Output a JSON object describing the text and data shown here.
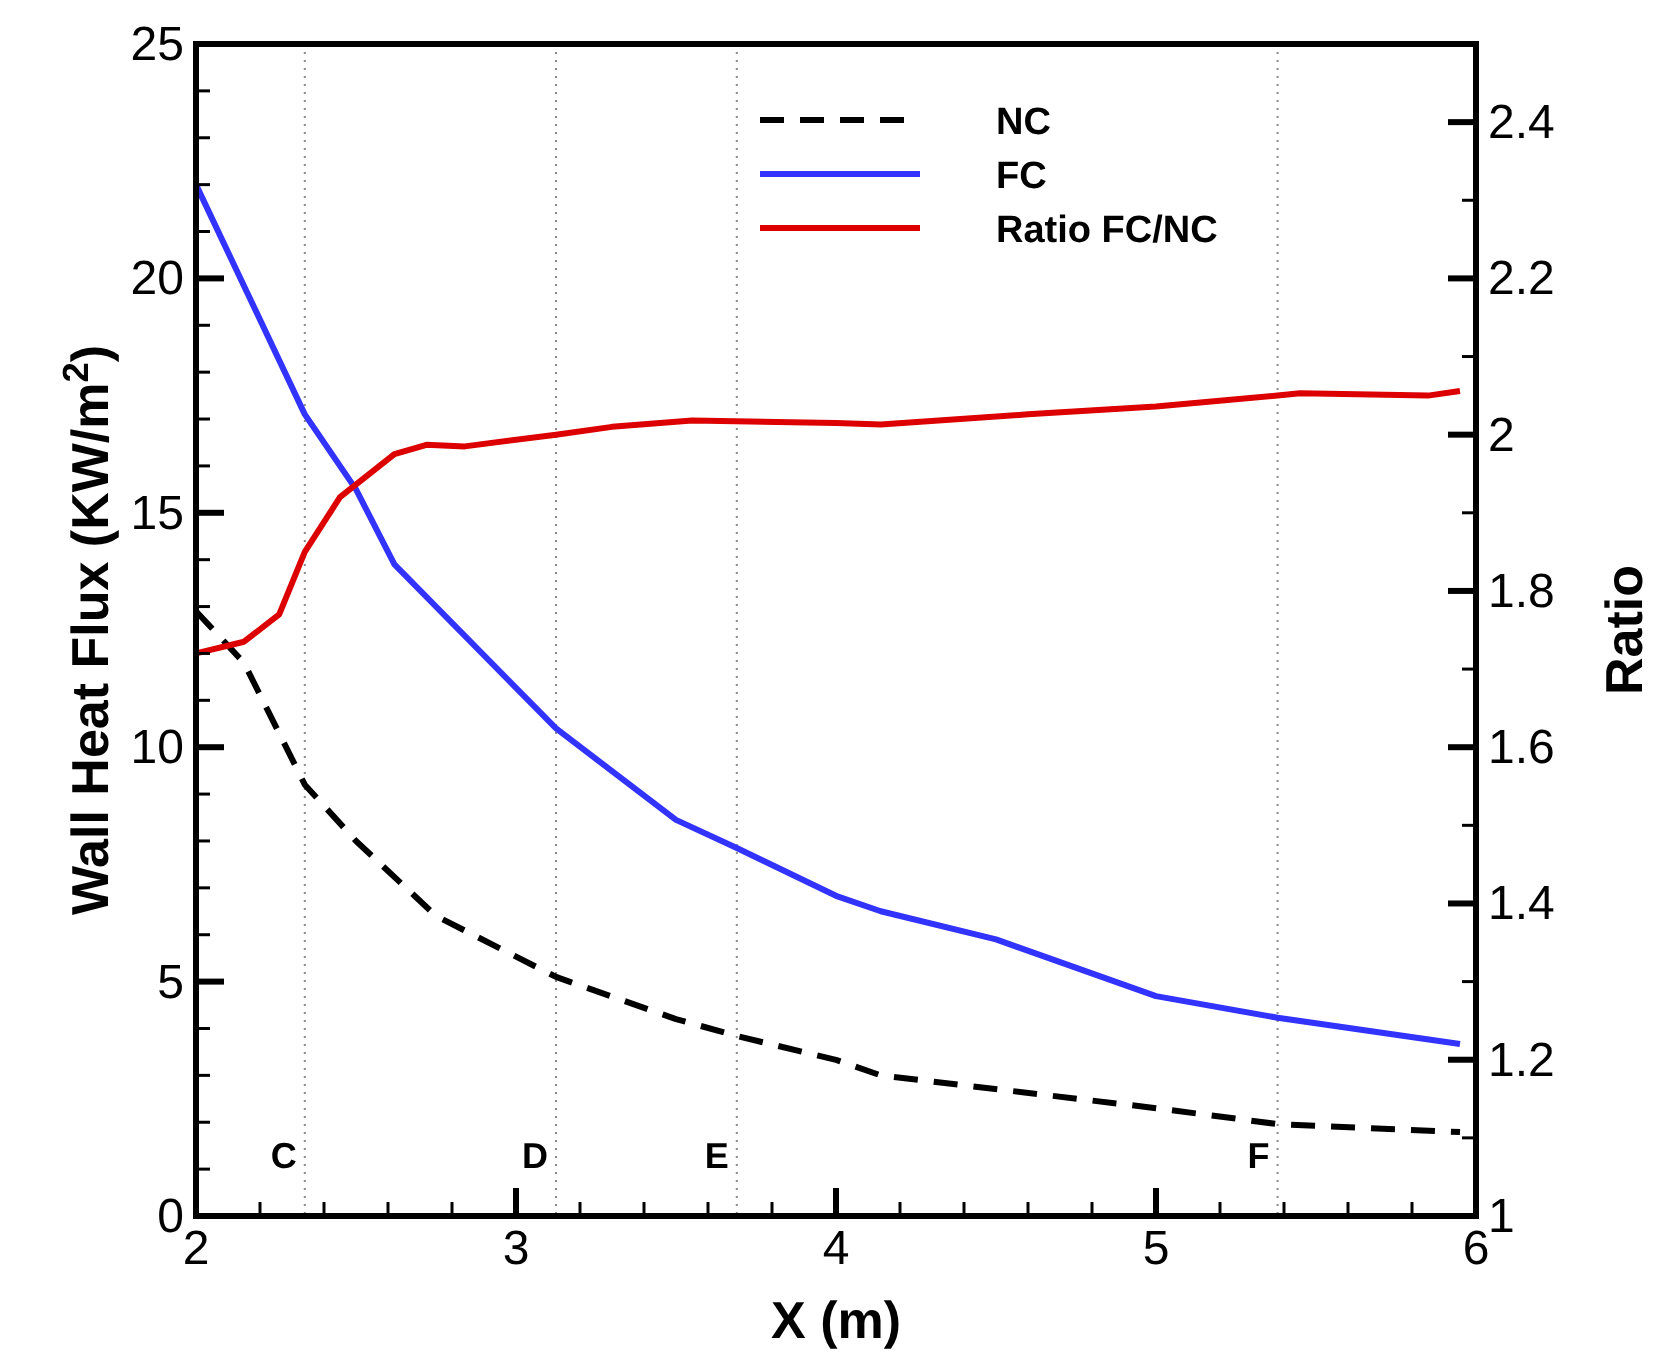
{
  "chart_data": {
    "type": "line",
    "xlabel": "X (m)",
    "ylabel": "Wall Heat Flux (KW/m$^{2}$)",
    "y2label": "Ratio",
    "xlim": [
      2,
      6
    ],
    "ylim": [
      0,
      25
    ],
    "y2lim": [
      1,
      2.5
    ],
    "xticks": [
      2,
      {
        "value": 2.2,
        "label": null
      },
      {
        "value": 2.4,
        "label": null
      },
      {
        "value": 2.6,
        "label": null
      },
      {
        "value": 2.8,
        "label": null
      },
      3,
      {
        "value": 3.2,
        "label": null
      },
      {
        "value": 3.4,
        "label": null
      },
      {
        "value": 3.6,
        "label": null
      },
      {
        "value": 3.8,
        "label": null
      },
      4,
      {
        "value": 4.2,
        "label": null
      },
      {
        "value": 4.4,
        "label": null
      },
      {
        "value": 4.6,
        "label": null
      },
      {
        "value": 4.8,
        "label": null
      },
      5,
      {
        "value": 5.2,
        "label": null
      },
      {
        "value": 5.4,
        "label": null
      },
      {
        "value": 5.6,
        "label": null
      },
      {
        "value": 5.8,
        "label": null
      },
      6
    ],
    "yticks": [
      0,
      {
        "value": 1,
        "label": null
      },
      {
        "value": 2,
        "label": null
      },
      {
        "value": 3,
        "label": null
      },
      {
        "value": 4,
        "label": null
      },
      5,
      {
        "value": 6,
        "label": null
      },
      {
        "value": 7,
        "label": null
      },
      {
        "value": 8,
        "label": null
      },
      {
        "value": 9,
        "label": null
      },
      10,
      {
        "value": 11,
        "label": null
      },
      {
        "value": 12,
        "label": null
      },
      {
        "value": 13,
        "label": null
      },
      {
        "value": 14,
        "label": null
      },
      15,
      {
        "value": 16,
        "label": null
      },
      {
        "value": 17,
        "label": null
      },
      {
        "value": 18,
        "label": null
      },
      {
        "value": 19,
        "label": null
      },
      20,
      {
        "value": 21,
        "label": null
      },
      {
        "value": 22,
        "label": null
      },
      {
        "value": 23,
        "label": null
      },
      {
        "value": 24,
        "label": null
      },
      25
    ],
    "y2ticks": [
      1,
      {
        "value": 1.1,
        "label": null
      },
      1.2,
      {
        "value": 1.3,
        "label": null
      },
      1.4,
      {
        "value": 1.5,
        "label": null
      },
      1.6,
      {
        "value": 1.7,
        "label": null
      },
      1.8,
      {
        "value": 1.9,
        "label": null
      },
      2,
      {
        "value": 2.1,
        "label": null
      },
      2.2,
      {
        "value": 2.3,
        "label": null
      },
      2.4,
      {
        "value": 2.5,
        "label": null
      }
    ],
    "legend": "top",
    "grid": false,
    "series": [
      {
        "name": "NC",
        "color": "#000000",
        "line_style": "dashed",
        "x": [
          2,
          2.15,
          2.34,
          2.5,
          2.75,
          3.125,
          3.5,
          3.69,
          4,
          4.14,
          5,
          5.38,
          5.95
        ],
        "values": [
          12.9,
          11.8,
          9.2,
          8.0,
          6.4,
          5.1,
          4.2,
          3.84,
          3.33,
          3.0,
          2.3,
          1.96,
          1.79
        ]
      },
      {
        "name": "FC",
        "color": "#3333ff",
        "line_style": "solid",
        "x": [
          2,
          2.34,
          2.5,
          2.62,
          3.125,
          3.5,
          3.69,
          4,
          4.14,
          4.5,
          5,
          5.38,
          5.95
        ],
        "values": [
          22.0,
          17.1,
          15.5,
          13.9,
          10.4,
          8.45,
          7.85,
          6.83,
          6.5,
          5.9,
          4.69,
          4.23,
          3.67
        ]
      },
      {
        "name": "Ratio FC/NC",
        "color": "#dd0000",
        "line_style": "solid",
        "axis": "y2",
        "x": [
          2,
          2.15,
          2.26,
          2.34,
          2.45,
          2.62,
          2.72,
          2.84,
          3.125,
          3.3,
          3.55,
          4,
          4.14,
          4.6,
          5,
          5.38,
          5.45,
          5.85,
          5.95
        ],
        "values": [
          1.72,
          1.735,
          1.77,
          1.85,
          1.92,
          1.975,
          1.987,
          1.985,
          2.0,
          2.01,
          2.018,
          2.015,
          2.013,
          2.026,
          2.036,
          2.05,
          2.053,
          2.05,
          2.056
        ]
      }
    ],
    "ref_lines": [
      {
        "axis": "x",
        "value": 2.34,
        "label": "C",
        "color": "#888888",
        "line_style": "dotted"
      },
      {
        "axis": "x",
        "value": 3.125,
        "label": "D",
        "color": "#888888",
        "line_style": "dotted"
      },
      {
        "axis": "x",
        "value": 3.69,
        "label": "E",
        "color": "#888888",
        "line_style": "dotted"
      },
      {
        "axis": "x",
        "value": 5.38,
        "label": "F",
        "color": "#888888",
        "line_style": "dotted"
      }
    ]
  }
}
